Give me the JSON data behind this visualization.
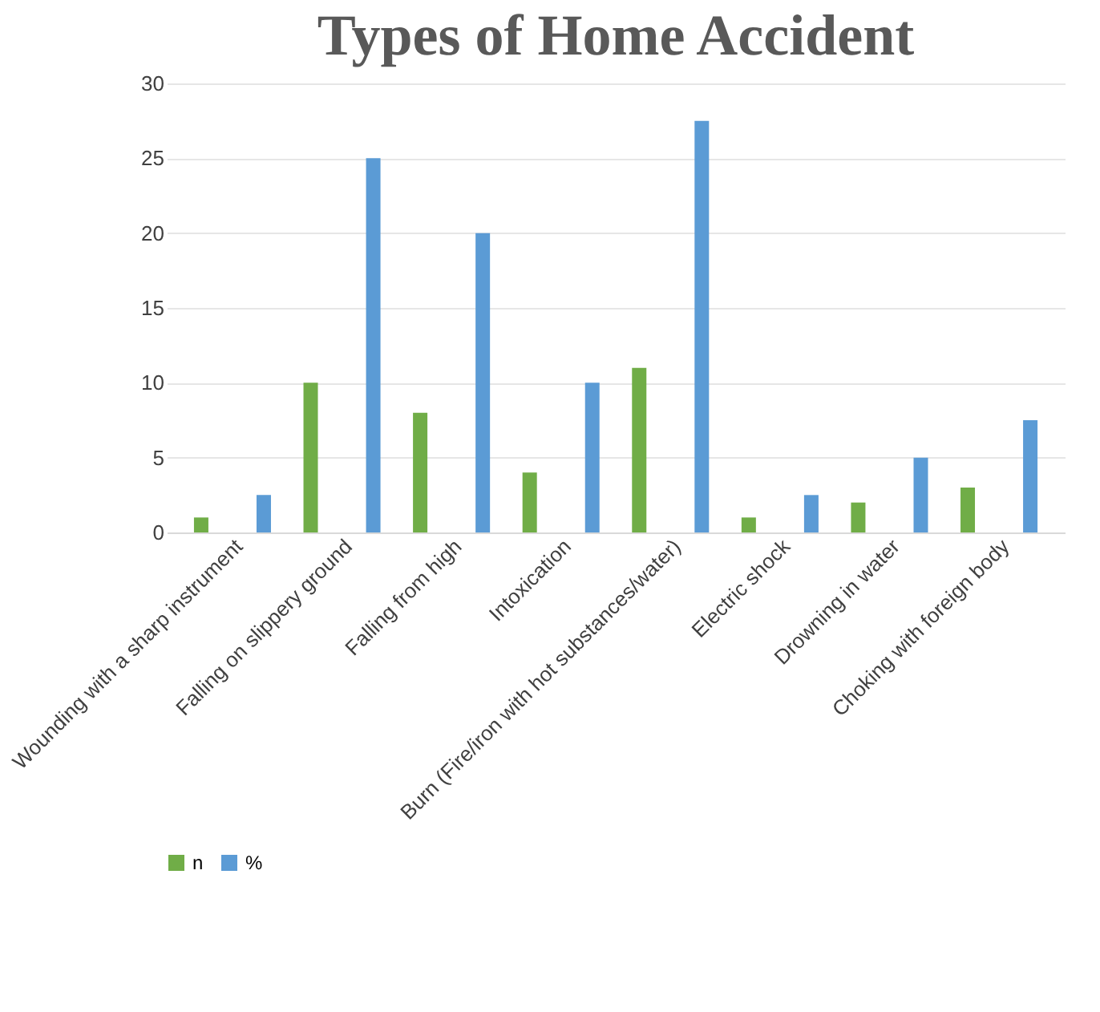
{
  "chart_data": {
    "type": "bar",
    "title": "Types of Home Accident",
    "categories": [
      "Wounding with a sharp instrument",
      "Falling on slippery ground",
      "Falling from high",
      "Intoxication",
      "Burn (Fire/iron with hot substances/water)",
      "Electric shock",
      "Drowning in water",
      "Choking with foreign body"
    ],
    "series": [
      {
        "name": "n",
        "color": "#70ad47",
        "values": [
          1,
          10,
          8,
          4,
          11,
          1,
          2,
          3
        ]
      },
      {
        "name": "%",
        "color": "#5b9bd5",
        "values": [
          2.5,
          25,
          20,
          10,
          27.5,
          2.5,
          5,
          7.5
        ]
      }
    ],
    "ylim": [
      0,
      30
    ],
    "yticks": [
      0,
      5,
      10,
      15,
      20,
      25,
      30
    ],
    "grid": "y",
    "legend": "bottom"
  }
}
